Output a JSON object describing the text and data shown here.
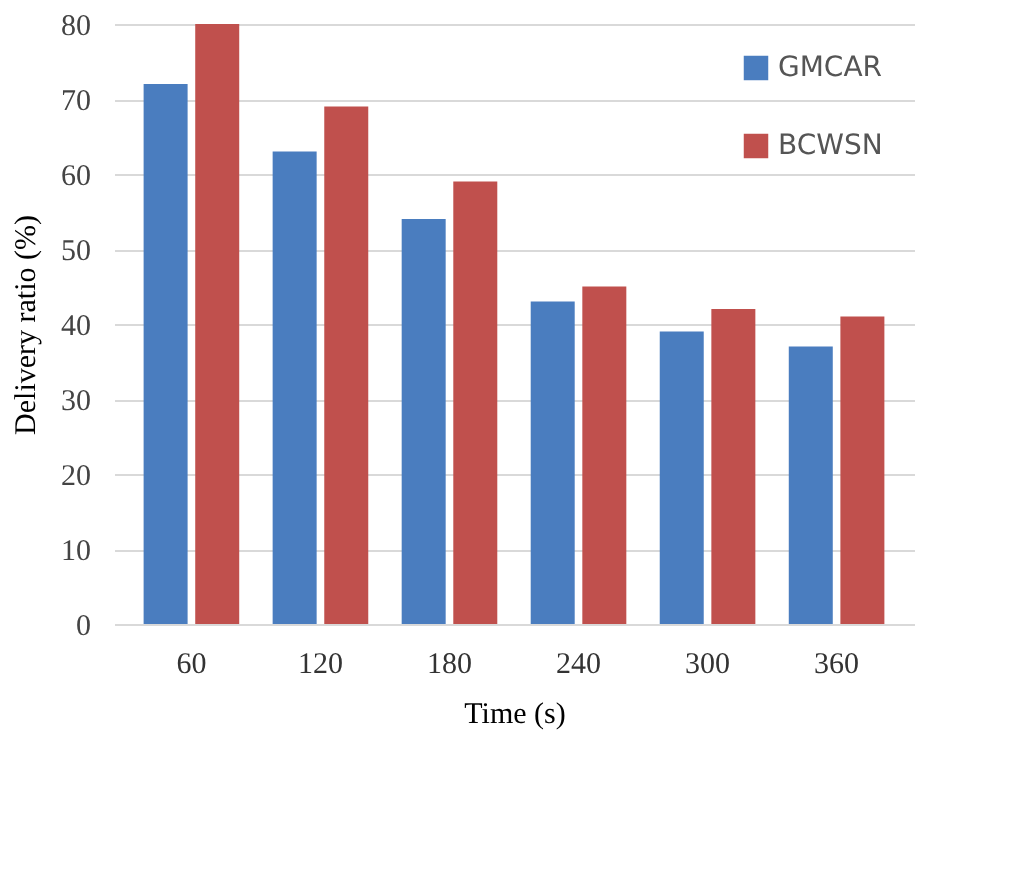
{
  "chart_data": {
    "type": "bar",
    "xlabel": "Time (s)",
    "ylabel": "Delivery ratio (%)",
    "categories": [
      "60",
      "120",
      "180",
      "240",
      "300",
      "360"
    ],
    "series": [
      {
        "name": "GMCAR",
        "color": "#4a7dbf",
        "values": [
          72,
          63,
          54,
          43,
          39,
          37
        ]
      },
      {
        "name": "BCWSN",
        "color": "#c0504d",
        "values": [
          80,
          69,
          59,
          45,
          42,
          41
        ]
      }
    ],
    "ylim": [
      0,
      80
    ],
    "yticks": [
      0,
      10,
      20,
      30,
      40,
      50,
      60,
      70,
      80
    ],
    "grid": "y",
    "legend": "top right"
  }
}
